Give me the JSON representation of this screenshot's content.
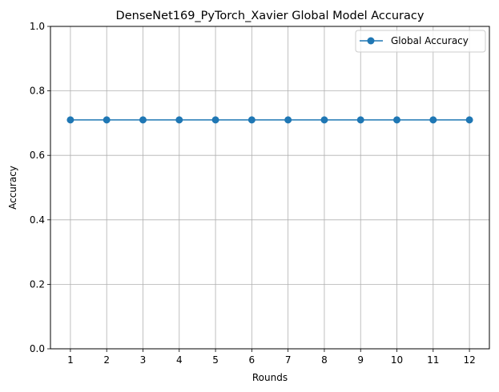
{
  "chart_data": {
    "type": "line",
    "title": "DenseNet169_PyTorch_Xavier Global Model Accuracy",
    "xlabel": "Rounds",
    "ylabel": "Accuracy",
    "x": [
      1,
      2,
      3,
      4,
      5,
      6,
      7,
      8,
      9,
      10,
      11,
      12
    ],
    "series": [
      {
        "name": "Global Accuracy",
        "values": [
          0.71,
          0.71,
          0.71,
          0.71,
          0.71,
          0.71,
          0.71,
          0.71,
          0.71,
          0.71,
          0.71,
          0.71
        ],
        "color": "#1f77b4",
        "marker": "circle"
      }
    ],
    "xticks": [
      "1",
      "2",
      "3",
      "4",
      "5",
      "6",
      "7",
      "8",
      "9",
      "10",
      "11",
      "12"
    ],
    "yticks": [
      "0.0",
      "0.2",
      "0.4",
      "0.6",
      "0.8",
      "1.0"
    ],
    "ylim": [
      0,
      1
    ],
    "xlim": [
      0.45,
      12.55
    ],
    "grid": true,
    "legend_position": "top-right"
  }
}
